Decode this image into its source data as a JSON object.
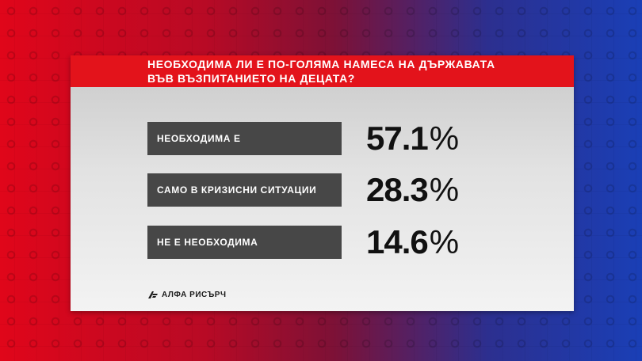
{
  "colors": {
    "title_bar": "#e3131b",
    "label_box": "#474747",
    "label_text": "#ffffff",
    "value_text": "#111111"
  },
  "title": {
    "line1": "НЕОБХОДИМА ЛИ Е ПО-ГОЛЯМА НАМЕСА НА ДЪРЖАВАТА",
    "line2": "ВЪВ ВЪЗПИТАНИЕТО НА ДЕЦАТА?"
  },
  "chart_data": {
    "type": "table",
    "title": "НЕОБХОДИМА ЛИ Е ПО-ГОЛЯМА НАМЕСА НА ДЪРЖАВАТА ВЪВ ВЪЗПИТАНИЕТО НА ДЕЦАТА?",
    "categories": [
      "НЕОБХОДИМА Е",
      "САМО В КРИЗИСНИ СИТУАЦИИ",
      "НЕ Е НЕОБХОДИМА"
    ],
    "values": [
      57.1,
      28.3,
      14.6
    ],
    "value_labels": [
      "57.1",
      "28.3",
      "14.6"
    ],
    "unit": "%"
  },
  "footer": {
    "logo_icon": "alpha-research-logo-icon",
    "source": "АЛФА РИСЪРЧ"
  }
}
